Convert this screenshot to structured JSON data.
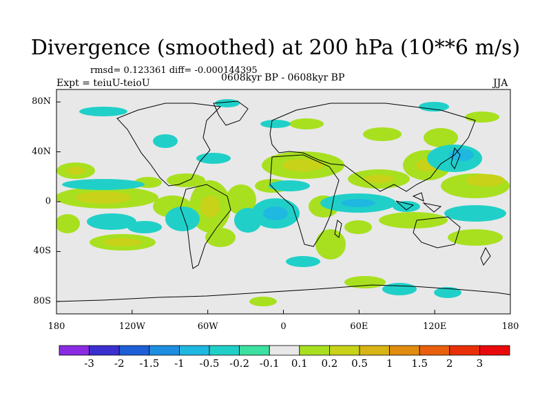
{
  "title": "Divergence (smoothed) at 200 hPa (10**6 m/s)",
  "stats": "rmsd= 0.123361 diff= -0.000144395",
  "experiment": "Expt = teiuU-teioU",
  "period": "0608kyr BP - 0608kyr BP",
  "season": "JJA",
  "axes": {
    "lon_ticks": [
      "180",
      "120W",
      "60W",
      "0",
      "60E",
      "120E",
      "180"
    ],
    "lat_ticks": [
      "80N",
      "40N",
      "0",
      "40S",
      "80S"
    ]
  },
  "colorbar": {
    "labels": [
      "-3",
      "-2",
      "-1.5",
      "-1",
      "-0.5",
      "-0.2",
      "-0.1",
      "0.1",
      "0.2",
      "0.5",
      "1",
      "1.5",
      "2",
      "3"
    ],
    "colors": [
      "#8a2be2",
      "#3b2fd0",
      "#1e5fd8",
      "#1e8ee0",
      "#1fb8e0",
      "#20d0c8",
      "#3ce0a0",
      "#e8e8e8",
      "#a8e020",
      "#c8d218",
      "#d8b414",
      "#e08c10",
      "#e8600c",
      "#e83008",
      "#e80a0a"
    ]
  },
  "map": {
    "background": "#e8e8e8",
    "coast_color": "#000000"
  }
}
